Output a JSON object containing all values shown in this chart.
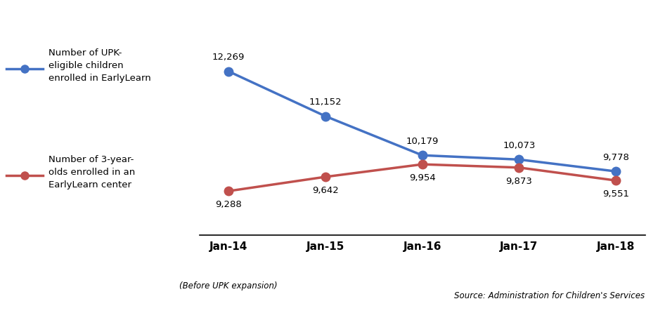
{
  "x_labels": [
    "Jan-14",
    "Jan-15",
    "Jan-16",
    "Jan-17",
    "Jan-18"
  ],
  "x_subtitle": "(Before UPK expansion)",
  "blue_values": [
    12269,
    11152,
    10179,
    10073,
    9778
  ],
  "red_values": [
    9288,
    9642,
    9954,
    9873,
    9551
  ],
  "blue_color": "#4472C4",
  "red_color": "#C0504D",
  "blue_label": "Number of UPK-\neligible children\nenrolled in EarlyLearn",
  "red_label": "Number of 3-year-\nolds enrolled in an\nEarlyLearn center",
  "source_text": "Source: Administration for Children's Services",
  "blue_annotations": [
    "12,269",
    "11,152",
    "10,179",
    "10,073",
    "9,778"
  ],
  "red_annotations": [
    "9,288",
    "9,642",
    "9,954",
    "9,873",
    "9,551"
  ],
  "background_color": "#ffffff",
  "ylim": [
    8200,
    13500
  ],
  "linewidth": 2.5,
  "markersize": 9
}
